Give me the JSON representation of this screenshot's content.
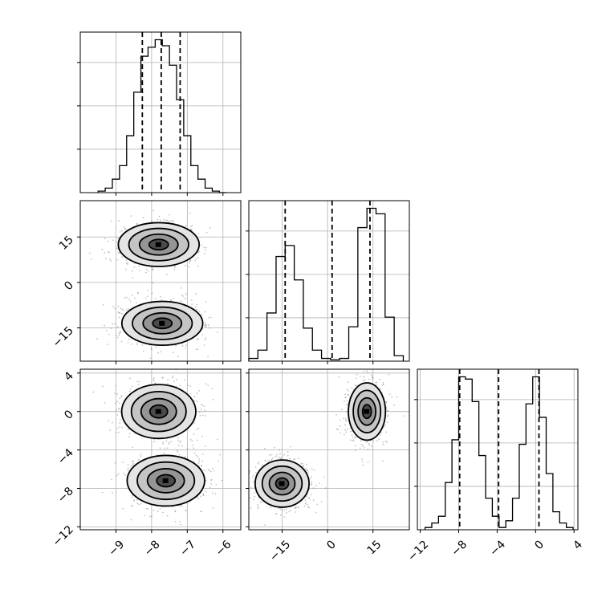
{
  "chart_data": {
    "type": "corner",
    "parameters": [
      {
        "ticks": [
          -9,
          -8,
          -7,
          -6
        ],
        "tick_labels": [
          "−9",
          "−8",
          "−7",
          "−6"
        ],
        "range": [
          -10.0,
          -5.5
        ]
      },
      {
        "ticks": [
          -15,
          0,
          15
        ],
        "tick_labels": [
          "−15",
          "0",
          "15"
        ],
        "range": [
          -26,
          27
        ]
      },
      {
        "ticks": [
          -12,
          -8,
          -4,
          0,
          4
        ],
        "tick_labels": [
          "−12",
          "−8",
          "−4",
          "0",
          "4"
        ],
        "range": [
          -12.3,
          4.4
        ]
      }
    ],
    "histograms": [
      {
        "param": 0,
        "bin_edges": [
          -9.5,
          -9.3,
          -9.1,
          -8.9,
          -8.7,
          -8.5,
          -8.3,
          -8.1,
          -7.9,
          -7.7,
          -7.5,
          -7.3,
          -7.1,
          -6.9,
          -6.7,
          -6.5,
          -6.3,
          -6.1,
          -5.9
        ],
        "counts": [
          1,
          3,
          9,
          18,
          38,
          67,
          91,
          97,
          102,
          98,
          85,
          62,
          38,
          18,
          9,
          3,
          1,
          0
        ],
        "quantiles": [
          -8.26,
          -7.73,
          -7.2
        ]
      },
      {
        "param": 1,
        "bin_edges": [
          -26,
          -23,
          -20,
          -17,
          -14,
          -11,
          -8,
          -5,
          -2,
          1,
          4,
          7,
          10,
          13,
          16,
          19,
          22,
          25
        ],
        "counts": [
          2,
          8,
          35,
          76,
          84,
          59,
          24,
          8,
          2,
          1,
          2,
          25,
          97,
          111,
          107,
          32,
          4
        ],
        "quantiles": [
          -14.0,
          1.5,
          14.0
        ]
      },
      {
        "param": 2,
        "bin_edges": [
          -11.5,
          -10.8,
          -10.1,
          -9.4,
          -8.7,
          -8.0,
          -7.3,
          -6.6,
          -5.9,
          -5.2,
          -4.5,
          -3.8,
          -3.1,
          -2.4,
          -1.7,
          -1.0,
          -0.3,
          0.4,
          1.1,
          1.8,
          2.5,
          3.2,
          3.9
        ],
        "counts": [
          1,
          3,
          6,
          21,
          40,
          68,
          67,
          57,
          33,
          14,
          6,
          1,
          4,
          14,
          38,
          56,
          68,
          50,
          25,
          8,
          3,
          1
        ],
        "quantiles": [
          -7.9,
          -3.85,
          0.35
        ]
      }
    ],
    "panels_2d": [
      {
        "x_param": 0,
        "y_param": 1,
        "modes": [
          {
            "x": -7.8,
            "y": 12.5
          },
          {
            "x": -7.7,
            "y": -13.5
          }
        ]
      },
      {
        "x_param": 0,
        "y_param": 2,
        "modes": [
          {
            "x": -7.8,
            "y": 0.0
          },
          {
            "x": -7.6,
            "y": -7.2
          }
        ]
      },
      {
        "x_param": 1,
        "y_param": 2,
        "modes": [
          {
            "x": 13.0,
            "y": 0.0
          },
          {
            "x": -15.0,
            "y": -7.5
          }
        ]
      }
    ],
    "title": "",
    "xlabel": "",
    "ylabel": "",
    "grid": true,
    "legend": "none"
  }
}
